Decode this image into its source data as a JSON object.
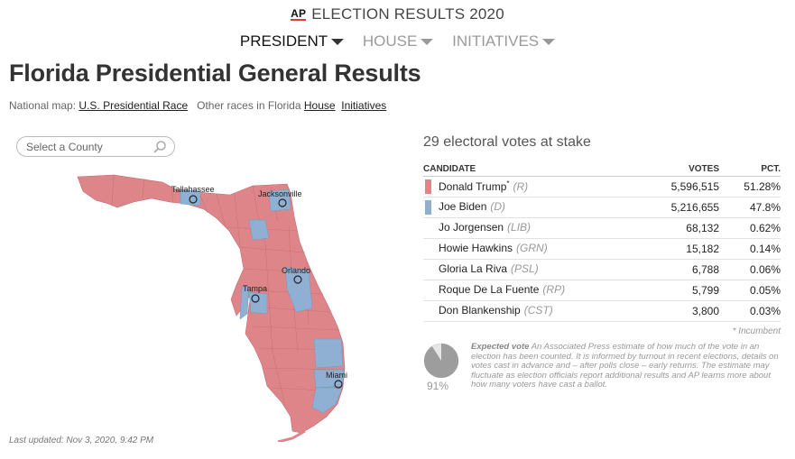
{
  "header": {
    "brand": "AP",
    "title": "ELECTION RESULTS 2020"
  },
  "nav": {
    "tabs": [
      {
        "label": "PRESIDENT",
        "active": true
      },
      {
        "label": "HOUSE",
        "active": false
      },
      {
        "label": "INITIATIVES",
        "active": false
      }
    ]
  },
  "page": {
    "title": "Florida Presidential General Results",
    "national_map_label": "National map:",
    "national_map_link": "U.S. Presidential Race",
    "other_races_label": "Other races in Florida",
    "other_race_links": [
      "House",
      "Initiatives"
    ]
  },
  "search": {
    "placeholder": "Select a County"
  },
  "map": {
    "cities": [
      "Tallahassee",
      "Jacksonville",
      "Orlando",
      "Tampa",
      "Miami"
    ],
    "colors": {
      "republican": "#de8589",
      "democrat": "#8fb0d2"
    }
  },
  "last_updated": "Last updated: Nov 3, 2020, 9:42 PM",
  "results": {
    "stake": "29 electoral votes at stake",
    "columns": {
      "candidate": "CANDIDATE",
      "votes": "VOTES",
      "pct": "PCT."
    },
    "rows": [
      {
        "name": "Donald Trump",
        "incumbent_mark": "*",
        "party": "(R)",
        "votes": "5,596,515",
        "pct": "51.28%",
        "color": "#de8589"
      },
      {
        "name": "Joe Biden",
        "incumbent_mark": "",
        "party": "(D)",
        "votes": "5,216,655",
        "pct": "47.8%",
        "color": "#8fb0d2"
      },
      {
        "name": "Jo Jorgensen",
        "incumbent_mark": "",
        "party": "(LIB)",
        "votes": "68,132",
        "pct": "0.62%",
        "color": ""
      },
      {
        "name": "Howie Hawkins",
        "incumbent_mark": "",
        "party": "(GRN)",
        "votes": "15,182",
        "pct": "0.14%",
        "color": ""
      },
      {
        "name": "Gloria La Riva",
        "incumbent_mark": "",
        "party": "(PSL)",
        "votes": "6,788",
        "pct": "0.06%",
        "color": ""
      },
      {
        "name": "Roque De La Fuente",
        "incumbent_mark": "",
        "party": "(RP)",
        "votes": "5,799",
        "pct": "0.05%",
        "color": ""
      },
      {
        "name": "Don Blankenship",
        "incumbent_mark": "",
        "party": "(CST)",
        "votes": "3,800",
        "pct": "0.03%",
        "color": ""
      }
    ],
    "incumbent_note": "* Incumbent"
  },
  "expected_vote": {
    "percent": "91%",
    "fraction": 0.91,
    "heading": "Expected vote",
    "text": "An Associated Press estimate of how much of the vote in an election has been counted. It is informed by turnout in recent elections, details on votes cast in advance and – after polls close – early returns. The estimate may fluctuate as election officials report additional results and AP learns more about how many voters have cast a ballot."
  }
}
